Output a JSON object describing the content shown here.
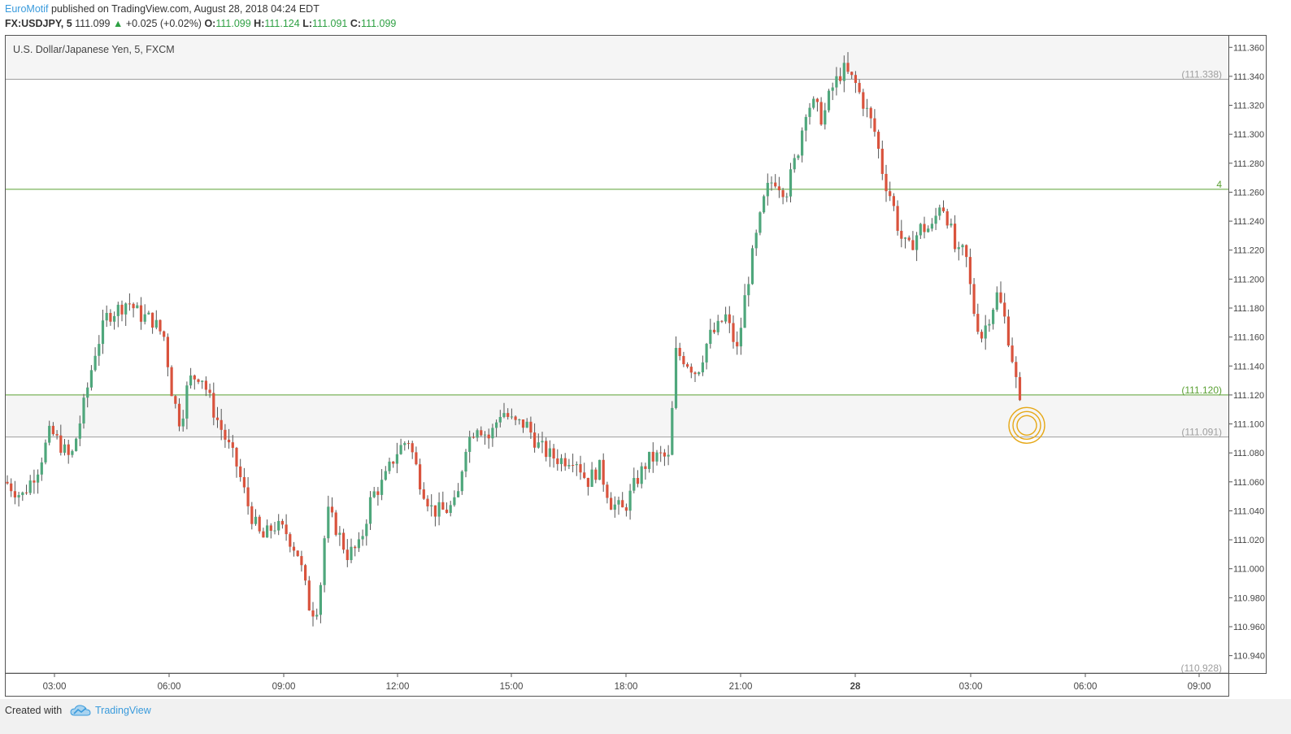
{
  "header": {
    "author": "EuroMotif",
    "published_text": "published on TradingView.com, August 28, 2018 04:24 EDT",
    "symbol": "FX:USDJPY, 5",
    "last_price": "111.099",
    "change": "+0.025 (+0.02%)",
    "ohlc": {
      "o_label": "O:",
      "o": "111.099",
      "h_label": "H:",
      "h": "111.124",
      "l_label": "L:",
      "l": "111.091",
      "c_label": "C:",
      "c": "111.099"
    }
  },
  "chart_title": "U.S. Dollar/Japanese Yen, 5, FXCM",
  "footer": {
    "created_with": "Created with",
    "brand": "TradingView"
  },
  "colors": {
    "up": "#4fa77c",
    "down": "#d9533d",
    "hline_green": "#5aa033",
    "hline_gray": "#9e9e9e",
    "marker": "#e6a817"
  },
  "chart_data": {
    "type": "candlestick",
    "symbol": "USDJPY",
    "interval_minutes": 5,
    "ylim": [
      110.928,
      111.368
    ],
    "y_ticks": [
      "111.360",
      "111.340",
      "111.320",
      "111.300",
      "111.280",
      "111.260",
      "111.240",
      "111.220",
      "111.200",
      "111.180",
      "111.160",
      "111.140",
      "111.120",
      "111.100",
      "111.080",
      "111.060",
      "111.040",
      "111.020",
      "111.000",
      "110.980",
      "110.960",
      "110.940"
    ],
    "x_ticks": [
      "03:00",
      "06:00",
      "09:00",
      "12:00",
      "15:00",
      "18:00",
      "21:00",
      "28",
      "03:00",
      "06:00",
      "09:00"
    ],
    "horizontal_lines": [
      {
        "price": 111.338,
        "label": "(111.338)",
        "color": "gray"
      },
      {
        "price": 111.262,
        "label": "4",
        "color": "green"
      },
      {
        "price": 111.12,
        "label": "(111.120)",
        "color": "green"
      },
      {
        "price": 111.091,
        "label": "(111.091)",
        "color": "gray"
      },
      {
        "price": 110.928,
        "label": "(110.928)",
        "color": "gray"
      }
    ],
    "shaded_zones": [
      [
        111.338,
        111.368
      ],
      [
        111.091,
        111.12
      ]
    ],
    "close_path": [
      [
        0,
        111.06
      ],
      [
        20,
        111.05
      ],
      [
        40,
        111.07
      ],
      [
        55,
        111.095
      ],
      [
        68,
        111.085
      ],
      [
        80,
        111.075
      ],
      [
        95,
        111.11
      ],
      [
        110,
        111.15
      ],
      [
        125,
        111.175
      ],
      [
        140,
        111.18
      ],
      [
        150,
        111.185
      ],
      [
        165,
        111.175
      ],
      [
        180,
        111.172
      ],
      [
        195,
        111.16
      ],
      [
        205,
        111.12
      ],
      [
        215,
        111.1
      ],
      [
        225,
        111.13
      ],
      [
        240,
        111.135
      ],
      [
        255,
        111.11
      ],
      [
        270,
        111.09
      ],
      [
        285,
        111.07
      ],
      [
        300,
        111.04
      ],
      [
        315,
        111.02
      ],
      [
        330,
        111.03
      ],
      [
        345,
        111.025
      ],
      [
        360,
        111.01
      ],
      [
        375,
        110.97
      ],
      [
        385,
        110.975
      ],
      [
        395,
        111.04
      ],
      [
        405,
        111.03
      ],
      [
        420,
        111.01
      ],
      [
        435,
        111.015
      ],
      [
        450,
        111.05
      ],
      [
        465,
        111.06
      ],
      [
        480,
        111.08
      ],
      [
        495,
        111.09
      ],
      [
        510,
        111.06
      ],
      [
        525,
        111.04
      ],
      [
        540,
        111.04
      ],
      [
        555,
        111.045
      ],
      [
        565,
        111.085
      ],
      [
        580,
        111.1
      ],
      [
        595,
        111.09
      ],
      [
        610,
        111.11
      ],
      [
        625,
        111.1
      ],
      [
        640,
        111.1
      ],
      [
        655,
        111.085
      ],
      [
        670,
        111.078
      ],
      [
        685,
        111.075
      ],
      [
        700,
        111.078
      ],
      [
        715,
        111.06
      ],
      [
        730,
        111.07
      ],
      [
        745,
        111.045
      ],
      [
        760,
        111.04
      ],
      [
        775,
        111.06
      ],
      [
        790,
        111.075
      ],
      [
        805,
        111.078
      ],
      [
        818,
        111.075
      ],
      [
        822,
        111.15
      ],
      [
        835,
        111.145
      ],
      [
        850,
        111.135
      ],
      [
        865,
        111.16
      ],
      [
        875,
        111.165
      ],
      [
        885,
        111.175
      ],
      [
        900,
        111.15
      ],
      [
        910,
        111.19
      ],
      [
        920,
        111.22
      ],
      [
        935,
        111.26
      ],
      [
        945,
        111.27
      ],
      [
        960,
        111.26
      ],
      [
        975,
        111.29
      ],
      [
        985,
        111.32
      ],
      [
        995,
        111.32
      ],
      [
        1005,
        111.31
      ],
      [
        1015,
        111.33
      ],
      [
        1030,
        111.345
      ],
      [
        1045,
        111.335
      ],
      [
        1060,
        111.315
      ],
      [
        1070,
        111.3
      ],
      [
        1080,
        111.27
      ],
      [
        1090,
        111.255
      ],
      [
        1100,
        111.23
      ],
      [
        1110,
        111.22
      ],
      [
        1125,
        111.235
      ],
      [
        1140,
        111.235
      ],
      [
        1150,
        111.255
      ],
      [
        1160,
        111.24
      ],
      [
        1170,
        111.215
      ],
      [
        1180,
        111.22
      ],
      [
        1190,
        111.18
      ],
      [
        1200,
        111.16
      ],
      [
        1210,
        111.175
      ],
      [
        1220,
        111.19
      ],
      [
        1230,
        111.17
      ],
      [
        1240,
        111.14
      ],
      [
        1248,
        111.11
      ],
      [
        1256,
        111.099
      ]
    ]
  }
}
